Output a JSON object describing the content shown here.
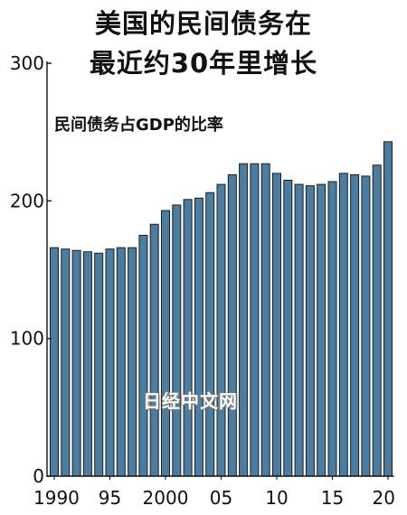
{
  "title_line1": "美国的民间债务在",
  "title_line2": "最近约30年里增长",
  "watermark": "日经中文网",
  "bar_color": "#4a7da1",
  "chart_data": {
    "type": "bar",
    "title": "美国的民间债务在最近约30年里增长",
    "ylabel": "民间债务占GDP的比率",
    "xlabel": "",
    "ylim": [
      0,
      300
    ],
    "yticks": [
      0,
      100,
      200,
      300
    ],
    "xtick_labels": [
      {
        "year": 1990,
        "label": "1990"
      },
      {
        "year": 1995,
        "label": "95"
      },
      {
        "year": 2000,
        "label": "2000"
      },
      {
        "year": 2005,
        "label": "05"
      },
      {
        "year": 2010,
        "label": "10"
      },
      {
        "year": 2015,
        "label": "15"
      },
      {
        "year": 2020,
        "label": "20"
      }
    ],
    "categories": [
      1990,
      1991,
      1992,
      1993,
      1994,
      1995,
      1996,
      1997,
      1998,
      1999,
      2000,
      2001,
      2002,
      2003,
      2004,
      2005,
      2006,
      2007,
      2008,
      2009,
      2010,
      2011,
      2012,
      2013,
      2014,
      2015,
      2016,
      2017,
      2018,
      2019,
      2020
    ],
    "values": [
      166,
      165,
      164,
      163,
      162,
      165,
      166,
      166,
      175,
      183,
      193,
      197,
      201,
      202,
      206,
      212,
      219,
      227,
      227,
      227,
      220,
      215,
      212,
      211,
      212,
      214,
      220,
      219,
      218,
      226,
      243
    ]
  }
}
